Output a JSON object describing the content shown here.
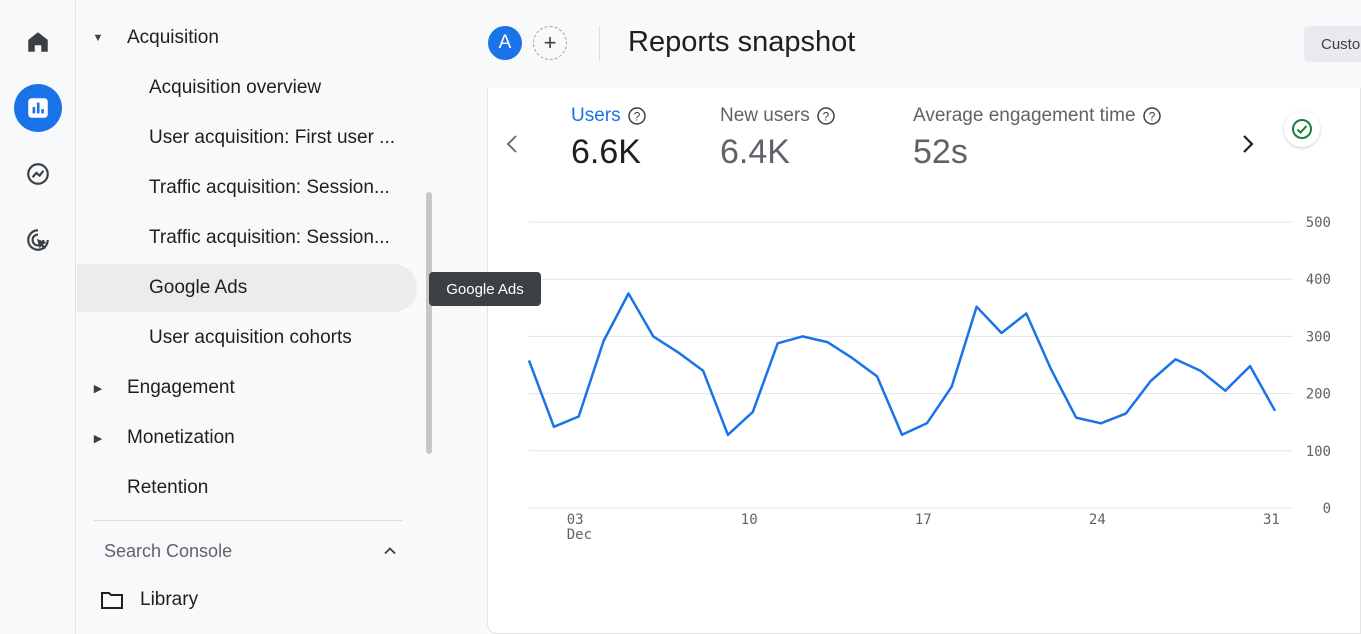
{
  "rail": {
    "items": [
      {
        "name": "home-icon",
        "label": "Home"
      },
      {
        "name": "reports-icon",
        "label": "Reports"
      },
      {
        "name": "explore-icon",
        "label": "Explore"
      },
      {
        "name": "advertising-icon",
        "label": "Advertising"
      }
    ]
  },
  "nav": {
    "items": [
      {
        "label": "Acquisition",
        "level": 1,
        "caret": "down"
      },
      {
        "label": "Acquisition overview",
        "level": 2
      },
      {
        "label": "User acquisition: First user ...",
        "level": 2
      },
      {
        "label": "Traffic acquisition: Session...",
        "level": 2
      },
      {
        "label": "Traffic acquisition: Session...",
        "level": 2
      },
      {
        "label": "Google Ads",
        "level": 2,
        "hover": true
      },
      {
        "label": "User acquisition cohorts",
        "level": 2
      },
      {
        "label": "Engagement",
        "level": 1,
        "caret": "right"
      },
      {
        "label": "Monetization",
        "level": 1,
        "caret": "right"
      },
      {
        "label": "Retention",
        "level": 1
      }
    ],
    "search_console": "Search Console",
    "library": "Library"
  },
  "tooltip": "Google Ads",
  "topbar": {
    "avatar_letter": "A",
    "add_comparison": "+",
    "title": "Reports snapshot",
    "custom_label": "Custo"
  },
  "metrics": [
    {
      "label": "Users",
      "value": "6.6K",
      "active": true
    },
    {
      "label": "New users",
      "value": "6.4K",
      "active": false
    },
    {
      "label": "Average engagement time",
      "value": "52s",
      "active": false
    }
  ],
  "colors": {
    "accent": "#1a73e8",
    "line": "#1a73e8",
    "success": "#188038"
  },
  "chart_data": {
    "type": "line",
    "series": [
      {
        "name": "Users",
        "values": [
          258,
          142,
          160,
          292,
          375,
          300,
          272,
          240,
          128,
          168,
          288,
          300,
          290,
          262,
          230,
          128,
          148,
          212,
          352,
          306,
          340,
          242,
          158,
          148,
          165,
          222,
          260,
          240,
          205,
          248,
          170
        ]
      }
    ],
    "x_tick_labels": [
      {
        "label": "03",
        "sub": "Dec",
        "index": 2
      },
      {
        "label": "10",
        "index": 9
      },
      {
        "label": "17",
        "index": 16
      },
      {
        "label": "24",
        "index": 23
      },
      {
        "label": "31",
        "index": 30
      }
    ],
    "y_ticks": [
      0,
      100,
      200,
      300,
      400,
      500
    ],
    "ylim": [
      0,
      500
    ],
    "grid": true,
    "y_axis_side": "right"
  }
}
